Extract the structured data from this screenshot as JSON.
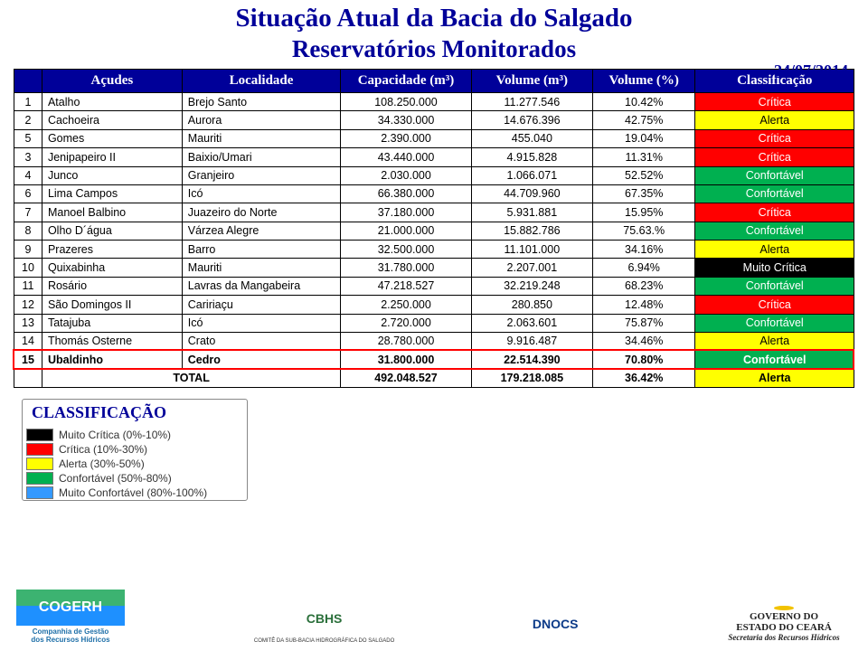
{
  "titles": {
    "line1": "Situação Atual da Bacia do Salgado",
    "line2": "Reservatórios Monitorados"
  },
  "date": "24/07/2014",
  "columns": {
    "idx": "",
    "acudes": "Açudes",
    "localidade": "Localidade",
    "capacidade": "Capacidade (m³)",
    "volume_m3": "Volume (m³)",
    "volume_pct": "Volume (%)",
    "classificacao": "Classificação"
  },
  "rows": [
    {
      "n": "1",
      "acude": "Atalho",
      "loc": "Brejo Santo",
      "cap": "108.250.000",
      "vm": "11.277.546",
      "vp": "10.42%",
      "cls": "Crítica",
      "clsClass": "cls-critica"
    },
    {
      "n": "2",
      "acude": "Cachoeira",
      "loc": "Aurora",
      "cap": "34.330.000",
      "vm": "14.676.396",
      "vp": "42.75%",
      "cls": "Alerta",
      "clsClass": "cls-alerta"
    },
    {
      "n": "5",
      "acude": "Gomes",
      "loc": "Mauriti",
      "cap": "2.390.000",
      "vm": "455.040",
      "vp": "19.04%",
      "cls": "Crítica",
      "clsClass": "cls-critica"
    },
    {
      "n": "3",
      "acude": "Jenipapeiro II",
      "loc": "Baixio/Umari",
      "cap": "43.440.000",
      "vm": "4.915.828",
      "vp": "11.31%",
      "cls": "Crítica",
      "clsClass": "cls-critica"
    },
    {
      "n": "4",
      "acude": "Junco",
      "loc": "Granjeiro",
      "cap": "2.030.000",
      "vm": "1.066.071",
      "vp": "52.52%",
      "cls": "Confortável",
      "clsClass": "cls-confortavel"
    },
    {
      "n": "6",
      "acude": "Lima Campos",
      "loc": "Icó",
      "cap": "66.380.000",
      "vm": "44.709.960",
      "vp": "67.35%",
      "cls": "Confortável",
      "clsClass": "cls-confortavel"
    },
    {
      "n": "7",
      "acude": "Manoel Balbino",
      "loc": "Juazeiro do Norte",
      "cap": "37.180.000",
      "vm": "5.931.881",
      "vp": "15.95%",
      "cls": "Crítica",
      "clsClass": "cls-critica"
    },
    {
      "n": "8",
      "acude": "Olho D´água",
      "loc": "Várzea Alegre",
      "cap": "21.000.000",
      "vm": "15.882.786",
      "vp": "75.63.%",
      "cls": "Confortável",
      "clsClass": "cls-confortavel"
    },
    {
      "n": "9",
      "acude": "Prazeres",
      "loc": "Barro",
      "cap": "32.500.000",
      "vm": "11.101.000",
      "vp": "34.16%",
      "cls": "Alerta",
      "clsClass": "cls-alerta"
    },
    {
      "n": "10",
      "acude": "Quixabinha",
      "loc": "Mauriti",
      "cap": "31.780.000",
      "vm": "2.207.001",
      "vp": "6.94%",
      "cls": "Muito Crítica",
      "clsClass": "cls-muito"
    },
    {
      "n": "11",
      "acude": "Rosário",
      "loc": "Lavras da Mangabeira",
      "cap": "47.218.527",
      "vm": "32.219.248",
      "vp": "68.23%",
      "cls": "Confortável",
      "clsClass": "cls-confortavel"
    },
    {
      "n": "12",
      "acude": "São Domingos II",
      "loc": "Caririaçu",
      "cap": "2.250.000",
      "vm": "280.850",
      "vp": "12.48%",
      "cls": "Crítica",
      "clsClass": "cls-critica"
    },
    {
      "n": "13",
      "acude": "Tatajuba",
      "loc": "Icó",
      "cap": "2.720.000",
      "vm": "2.063.601",
      "vp": "75.87%",
      "cls": "Confortável",
      "clsClass": "cls-confortavel"
    },
    {
      "n": "14",
      "acude": "Thomás Osterne",
      "loc": "Crato",
      "cap": "28.780.000",
      "vm": "9.916.487",
      "vp": "34.46%",
      "cls": "Alerta",
      "clsClass": "cls-alerta"
    },
    {
      "n": "15",
      "acude": "Ubaldinho",
      "loc": "Cedro",
      "cap": "31.800.000",
      "vm": "22.514.390",
      "vp": "70.80%",
      "cls": "Confortável",
      "clsClass": "cls-confortavel",
      "highlight": true
    }
  ],
  "total": {
    "label": "TOTAL",
    "cap": "492.048.527",
    "vm": "179.218.085",
    "vp": "36.42%",
    "cls": "Alerta",
    "clsClass": "cls-alerta"
  },
  "legend": {
    "title": "CLASSIFICAÇÃO",
    "items": [
      {
        "color": "#000000",
        "label": "Muito Crítica (0%-10%)"
      },
      {
        "color": "#ff0000",
        "label": "Crítica (10%-30%)"
      },
      {
        "color": "#ffff00",
        "label": "Alerta (30%-50%)"
      },
      {
        "color": "#00b050",
        "label": "Confortável (50%-80%)"
      },
      {
        "color": "#3399ff",
        "label": "Muito Confortável (80%-100%)"
      }
    ]
  },
  "logos": {
    "cogerh": {
      "mark": "COGERH",
      "sub": "Companhia de Gestão\ndos Recursos Hídricos"
    },
    "cbhs": {
      "mark": "CBHS",
      "sub": "COMITÊ DA SUB-BACIA HIDROGRÁFICA DO SALGADO"
    },
    "dnocs": {
      "mark": "DNOCS",
      "sub": ""
    },
    "ceara": {
      "l1": "GOVERNO DO",
      "l2": "ESTADO DO CEARÁ",
      "l3": "Secretaria dos Recursos Hídricos"
    }
  },
  "colwidths": [
    "30px",
    "150px",
    "170px",
    "140px",
    "130px",
    "110px",
    "170px"
  ]
}
